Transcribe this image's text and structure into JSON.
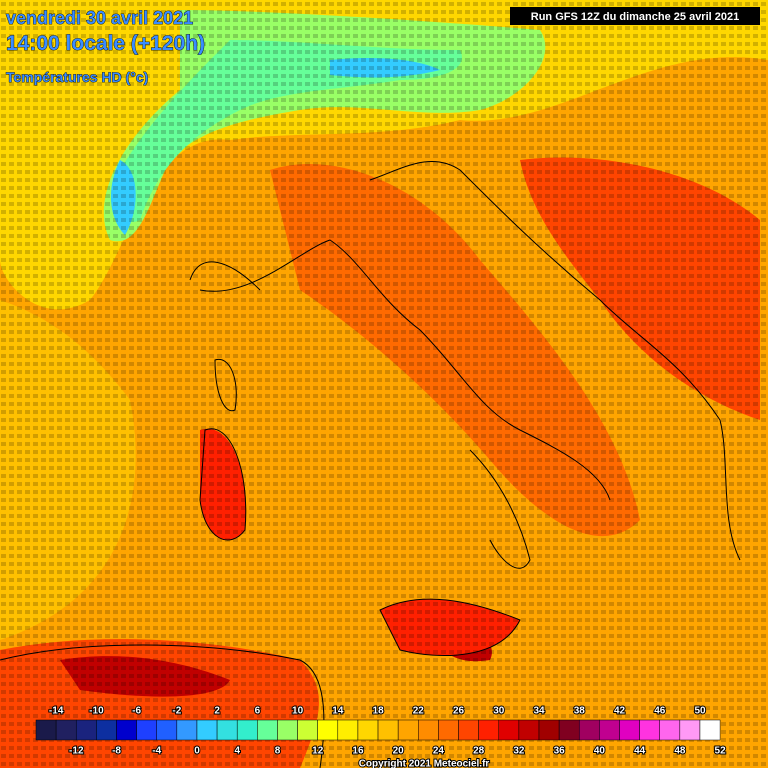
{
  "header": {
    "date": "vendredi 30 avril 2021",
    "time": "14:00 locale (+120h)",
    "field": "Températures HD (°c)",
    "run": "Run GFS 12Z du dimanche 25 avril 2021"
  },
  "legend": {
    "top_labels": [
      -14,
      -10,
      -6,
      -2,
      2,
      6,
      10,
      14,
      18,
      22,
      26,
      30,
      34,
      38,
      42,
      46,
      50
    ],
    "bottom_labels": [
      -12,
      -8,
      -4,
      0,
      4,
      8,
      12,
      16,
      20,
      24,
      28,
      32,
      36,
      40,
      44,
      48,
      52
    ],
    "colors": [
      "#1a1a4a",
      "#202060",
      "#1a237e",
      "#0d2fa0",
      "#0000cd",
      "#1e40ff",
      "#2060ff",
      "#3399ff",
      "#33ccff",
      "#33e0e0",
      "#33eecc",
      "#66ff99",
      "#99ff66",
      "#ccff33",
      "#ffff00",
      "#ffee00",
      "#ffd700",
      "#ffc000",
      "#ffa500",
      "#ff8c00",
      "#ff6a00",
      "#ff4500",
      "#ff2000",
      "#e00000",
      "#c00000",
      "#a00000",
      "#800020",
      "#a00060",
      "#c00090",
      "#e000c0",
      "#ff33e0",
      "#ff66ee",
      "#ff99f5",
      "#ffffff"
    ]
  },
  "footer": {
    "copyright": "Copyright 2021 Meteociel.fr"
  }
}
